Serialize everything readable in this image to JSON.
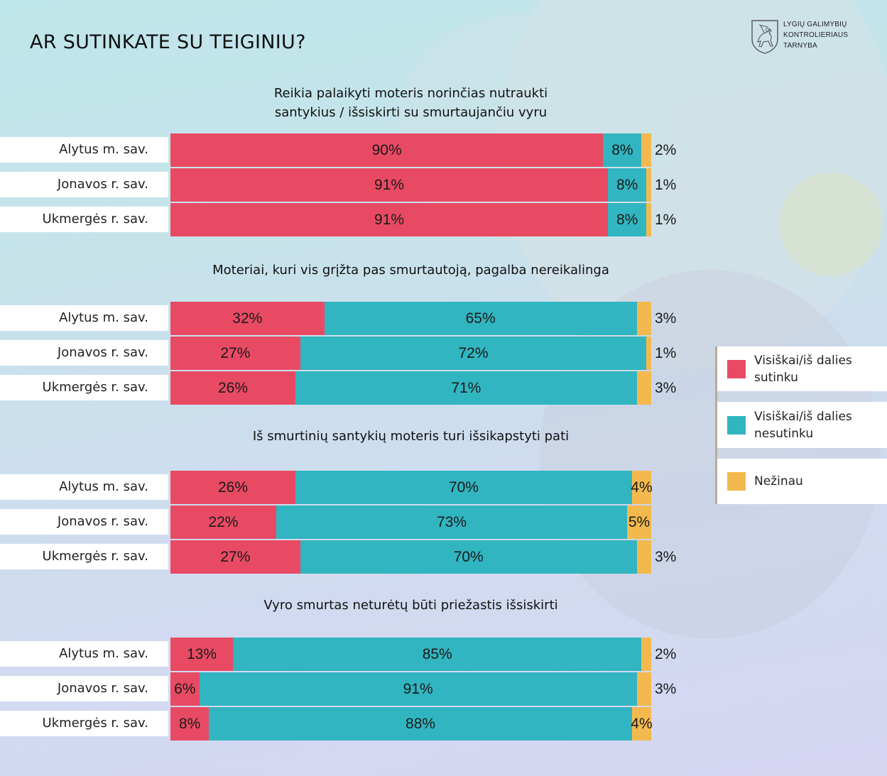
{
  "page": {
    "title": "AR SUTINKATE SU TEIGINIU?",
    "logo": {
      "icon": "vytis-coat-of-arms-icon",
      "lines": [
        "LYGIŲ GALIMYBIŲ",
        "KONTROLIERIAUS",
        "TARNYBA"
      ]
    }
  },
  "colors": {
    "agree": "#e94a63",
    "disagree": "#31b5c0",
    "unknown": "#f3b94f"
  },
  "legend": [
    {
      "key": "agree",
      "line1": "Visiškai/iš dalies",
      "line2": "sutinku"
    },
    {
      "key": "disagree",
      "line1": "Visiškai/iš dalies",
      "line2": "nesutinku"
    },
    {
      "key": "unknown",
      "line1": "Nežinau",
      "line2": ""
    }
  ],
  "chart_data": {
    "type": "bar",
    "orientation": "horizontal-stacked-100",
    "title": "AR SUTINKATE SU TEIGINIU?",
    "categories": [
      "Alytus m. sav.",
      "Jonavos r. sav.",
      "Ukmergės r. sav."
    ],
    "series_names": [
      "Visiškai/iš dalies sutinku",
      "Visiškai/iš dalies nesutinku",
      "Nežinau"
    ],
    "xlim": [
      0,
      100
    ],
    "unit": "%",
    "legend_position": "right",
    "panels": [
      {
        "title_line1": "Reikia palaikyti moteris norinčias nutraukti",
        "title_line2": "santykius / išsiskirti su smurtaujančiu vyru",
        "rows": [
          {
            "label": "Alytus m. sav.",
            "values": [
              90,
              8,
              2
            ],
            "labels": [
              "90%",
              "8%",
              "2%"
            ]
          },
          {
            "label": "Jonavos r. sav.",
            "values": [
              91,
              8,
              1
            ],
            "labels": [
              "91%",
              "8%",
              "1%"
            ]
          },
          {
            "label": "Ukmergės r. sav.",
            "values": [
              91,
              8,
              1
            ],
            "labels": [
              "91%",
              "8%",
              "1%"
            ]
          }
        ]
      },
      {
        "title_line1": "Moteriai, kuri vis grįžta pas smurtautoją, pagalba nereikalinga",
        "title_line2": "",
        "rows": [
          {
            "label": "Alytus m. sav.",
            "values": [
              32,
              65,
              3
            ],
            "labels": [
              "32%",
              "65%",
              "3%"
            ]
          },
          {
            "label": "Jonavos r. sav.",
            "values": [
              27,
              72,
              1
            ],
            "labels": [
              "27%",
              "72%",
              "1%"
            ]
          },
          {
            "label": "Ukmergės r. sav.",
            "values": [
              26,
              71,
              3
            ],
            "labels": [
              "26%",
              "71%",
              "3%"
            ]
          }
        ]
      },
      {
        "title_line1": "Iš smurtinių santykių moteris turi išsikapstyti pati",
        "title_line2": "",
        "rows": [
          {
            "label": "Alytus m. sav.",
            "values": [
              26,
              70,
              4
            ],
            "labels": [
              "26%",
              "70%",
              "4%"
            ]
          },
          {
            "label": "Jonavos r. sav.",
            "values": [
              22,
              73,
              5
            ],
            "labels": [
              "22%",
              "73%",
              "5%"
            ]
          },
          {
            "label": "Ukmergės r. sav.",
            "values": [
              27,
              70,
              3
            ],
            "labels": [
              "27%",
              "70%",
              "3%"
            ]
          }
        ]
      },
      {
        "title_line1": "Vyro smurtas neturėtų būti priežastis išsiskirti",
        "title_line2": "",
        "rows": [
          {
            "label": "Alytus m. sav.",
            "values": [
              13,
              85,
              2
            ],
            "labels": [
              "13%",
              "85%",
              "2%"
            ]
          },
          {
            "label": "Jonavos r. sav.",
            "values": [
              6,
              91,
              3
            ],
            "labels": [
              "6%",
              "91%",
              "3%"
            ]
          },
          {
            "label": "Ukmergės r. sav.",
            "values": [
              8,
              88,
              4
            ],
            "labels": [
              "8%",
              "88%",
              "4%"
            ]
          }
        ]
      }
    ]
  }
}
